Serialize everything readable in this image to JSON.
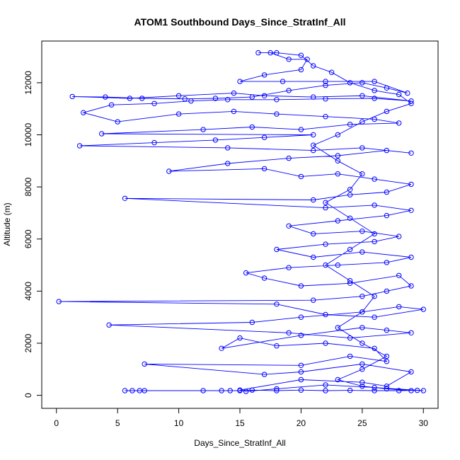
{
  "chart_data": {
    "type": "scatter",
    "title": "ATOM1 Southbound Days_Since_StratInf_All",
    "xlabel": "Days_Since_StratInf_All",
    "ylabel": "Altitude (m)",
    "xlim": [
      -1.2,
      31.2
    ],
    "ylim": [
      -500,
      13600
    ],
    "xticks": [
      0,
      5,
      10,
      15,
      20,
      25,
      30
    ],
    "yticks": [
      0,
      2000,
      4000,
      6000,
      8000,
      10000,
      12000
    ],
    "grid": false,
    "legend": "none",
    "connected": true,
    "marker": "open-circle",
    "color": "#0000ff",
    "series": [
      {
        "points": [
          [
            5.6,
            180
          ],
          [
            6.2,
            180
          ],
          [
            6.8,
            180
          ],
          [
            7.2,
            180
          ],
          [
            12,
            180
          ],
          [
            13.5,
            180
          ],
          [
            14.2,
            180
          ],
          [
            15,
            180
          ],
          [
            16,
            200
          ],
          [
            18,
            180
          ],
          [
            20,
            200
          ],
          [
            22,
            180
          ],
          [
            24,
            190
          ],
          [
            26,
            180
          ],
          [
            28,
            180
          ],
          [
            29.5,
            190
          ],
          [
            30,
            180
          ],
          [
            26,
            300
          ],
          [
            22,
            400
          ],
          [
            18,
            250
          ],
          [
            15.5,
            150
          ],
          [
            15,
            200
          ],
          [
            20,
            600
          ],
          [
            25,
            500
          ],
          [
            27,
            350
          ],
          [
            29,
            900
          ],
          [
            25,
            1200
          ],
          [
            20,
            900
          ],
          [
            17,
            800
          ],
          [
            7.2,
            1200
          ],
          [
            20,
            1150
          ],
          [
            24,
            1500
          ],
          [
            27,
            1300
          ],
          [
            26,
            1800
          ],
          [
            22,
            2000
          ],
          [
            18,
            1900
          ],
          [
            15,
            2200
          ],
          [
            13.5,
            1800
          ],
          [
            20,
            2300
          ],
          [
            25,
            2600
          ],
          [
            27,
            2500
          ],
          [
            29,
            2400
          ],
          [
            24,
            2200
          ],
          [
            19,
            2400
          ],
          [
            4.3,
            2700
          ],
          [
            16,
            2800
          ],
          [
            20,
            3000
          ],
          [
            25,
            3200
          ],
          [
            28,
            3400
          ],
          [
            30,
            3300
          ],
          [
            26,
            3000
          ],
          [
            22,
            3100
          ],
          [
            18,
            3500
          ],
          [
            0.2,
            3600
          ],
          [
            21,
            3650
          ],
          [
            25,
            3800
          ],
          [
            27,
            4000
          ],
          [
            29,
            4200
          ],
          [
            28,
            4600
          ],
          [
            24,
            4300
          ],
          [
            20,
            4200
          ],
          [
            17,
            4500
          ],
          [
            15.5,
            4700
          ],
          [
            19,
            4900
          ],
          [
            23,
            5000
          ],
          [
            27,
            5100
          ],
          [
            29,
            5300
          ],
          [
            25,
            5500
          ],
          [
            21,
            5300
          ],
          [
            18,
            5600
          ],
          [
            22,
            5800
          ],
          [
            26,
            5900
          ],
          [
            28,
            6100
          ],
          [
            25,
            6300
          ],
          [
            21,
            6200
          ],
          [
            19,
            6500
          ],
          [
            23,
            6700
          ],
          [
            27,
            6900
          ],
          [
            29,
            7100
          ],
          [
            26,
            7300
          ],
          [
            22,
            7200
          ],
          [
            5.6,
            7560
          ],
          [
            21,
            7500
          ],
          [
            24,
            7700
          ],
          [
            27,
            7800
          ],
          [
            29,
            8100
          ],
          [
            26,
            8300
          ],
          [
            23,
            8500
          ],
          [
            20,
            8400
          ],
          [
            17,
            8700
          ],
          [
            9.2,
            8600
          ],
          [
            14,
            8900
          ],
          [
            19,
            9100
          ],
          [
            23,
            9200
          ],
          [
            27,
            9400
          ],
          [
            29,
            9300
          ],
          [
            25,
            9500
          ],
          [
            21,
            9400
          ],
          [
            14,
            9500
          ],
          [
            1.9,
            9580
          ],
          [
            8,
            9700
          ],
          [
            13,
            9800
          ],
          [
            17,
            9900
          ],
          [
            21,
            10000
          ],
          [
            3.7,
            10040
          ],
          [
            12,
            10200
          ],
          [
            16,
            10300
          ],
          [
            20,
            10200
          ],
          [
            24,
            10400
          ],
          [
            28,
            10450
          ],
          [
            26,
            10600
          ],
          [
            22,
            10700
          ],
          [
            18,
            10800
          ],
          [
            14.5,
            10900
          ],
          [
            10,
            10800
          ],
          [
            5,
            10500
          ],
          [
            2.2,
            10850
          ],
          [
            4.5,
            11150
          ],
          [
            8,
            11200
          ],
          [
            11,
            11300
          ],
          [
            14,
            11350
          ],
          [
            18,
            11350
          ],
          [
            22,
            11380
          ],
          [
            26,
            11400
          ],
          [
            29,
            11300
          ],
          [
            25,
            11500
          ],
          [
            21,
            11450
          ],
          [
            17,
            11500
          ],
          [
            14.5,
            11600
          ],
          [
            10,
            11500
          ],
          [
            6,
            11400
          ],
          [
            1.3,
            11470
          ],
          [
            4,
            11450
          ],
          [
            7,
            11400
          ],
          [
            10.5,
            11380
          ],
          [
            13,
            11400
          ],
          [
            16,
            11450
          ],
          [
            19,
            11700
          ],
          [
            22,
            11900
          ],
          [
            25,
            12000
          ],
          [
            27,
            11800
          ],
          [
            28.7,
            11600
          ],
          [
            26,
            12050
          ],
          [
            22,
            12050
          ],
          [
            18.5,
            12050
          ],
          [
            15,
            12050
          ],
          [
            17,
            12300
          ],
          [
            20,
            12500
          ],
          [
            20.5,
            12900
          ],
          [
            19,
            12900
          ],
          [
            17.5,
            13150
          ],
          [
            16.5,
            13150
          ],
          [
            18,
            13150
          ],
          [
            20,
            13050
          ],
          [
            21,
            12650
          ],
          [
            22.5,
            12400
          ],
          [
            24,
            12000
          ],
          [
            26,
            11700
          ],
          [
            28,
            11550
          ],
          [
            29,
            11200
          ],
          [
            27,
            10900
          ],
          [
            25,
            10500
          ],
          [
            23,
            10000
          ],
          [
            21,
            9600
          ],
          [
            23,
            9000
          ],
          [
            25,
            8500
          ],
          [
            24,
            7900
          ],
          [
            22,
            7400
          ],
          [
            24,
            6800
          ],
          [
            26,
            6200
          ],
          [
            24,
            5600
          ],
          [
            22,
            5000
          ],
          [
            24,
            4400
          ],
          [
            26,
            3800
          ],
          [
            25,
            3200
          ],
          [
            23,
            2600
          ],
          [
            25,
            2000
          ],
          [
            27,
            1500
          ],
          [
            25,
            1000
          ],
          [
            23,
            600
          ],
          [
            25,
            350
          ],
          [
            27,
            250
          ],
          [
            29,
            180
          ]
        ]
      }
    ]
  }
}
